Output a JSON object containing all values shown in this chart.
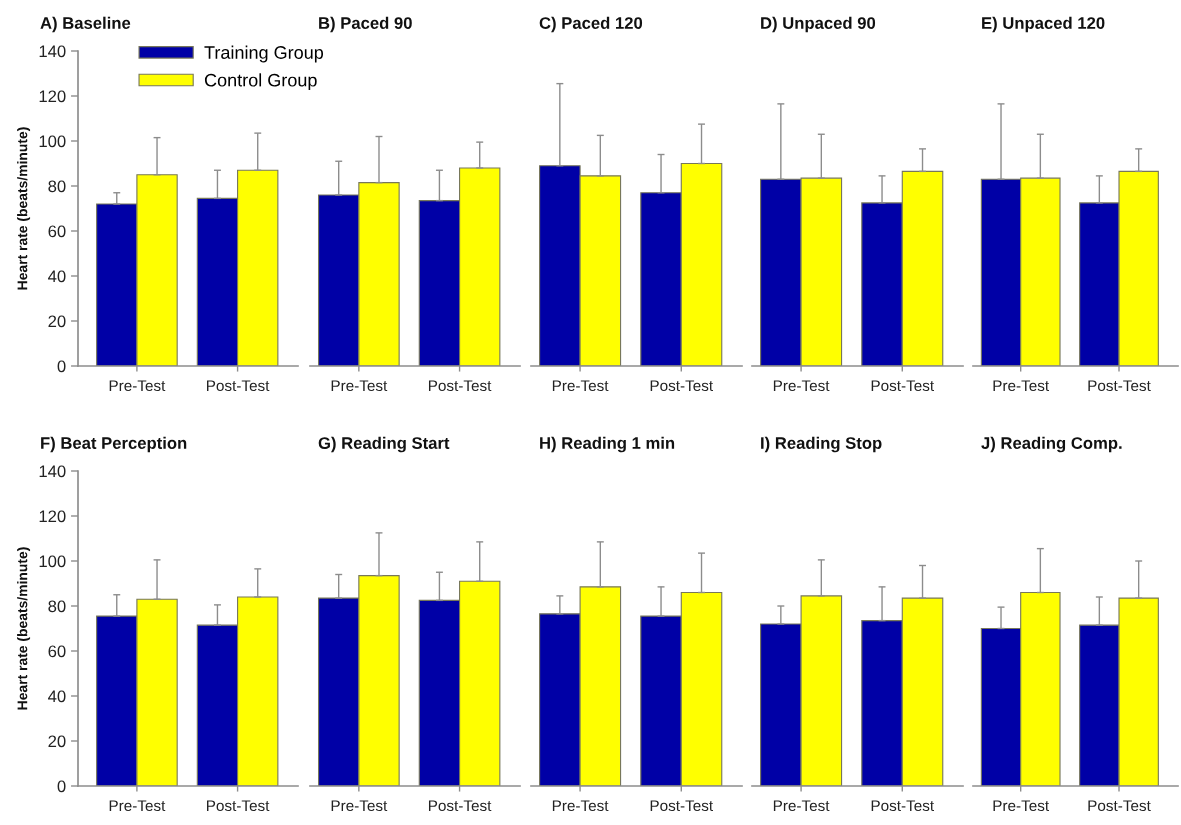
{
  "chart_data": [
    {
      "type": "bar",
      "title": "A) Baseline",
      "ylabel": "Heart rate (beats/minute)",
      "categories": [
        "Pre-Test",
        "Post-Test"
      ],
      "ylim": [
        0,
        140
      ],
      "yticks": [
        0,
        20,
        40,
        60,
        80,
        100,
        120,
        140
      ],
      "legend": "top right",
      "series": [
        {
          "name": "Training Group",
          "color": "#0000a6",
          "values": [
            72,
            74.5
          ],
          "errors": [
            [
              72,
              77
            ],
            [
              74.5,
              87
            ]
          ]
        },
        {
          "name": "Control Group",
          "color": "#ffff00",
          "values": [
            85,
            87
          ],
          "errors": [
            [
              85,
              101.5
            ],
            [
              87,
              103.5
            ]
          ]
        }
      ]
    },
    {
      "type": "bar",
      "title": "B) Paced 90",
      "categories": [
        "Pre-Test",
        "Post-Test"
      ],
      "ylim": [
        0,
        140
      ],
      "tick_labels": "x",
      "series": [
        {
          "color": "#0000a6",
          "values": [
            76,
            73.5
          ],
          "errors": [
            [
              76,
              91
            ],
            [
              73.5,
              87
            ]
          ]
        },
        {
          "color": "#ffff00",
          "values": [
            81.5,
            88
          ],
          "errors": [
            [
              81.5,
              102
            ],
            [
              88,
              99.5
            ]
          ]
        }
      ]
    },
    {
      "type": "bar",
      "title": "C) Paced 120",
      "categories": [
        "Pre-Test",
        "Post-Test"
      ],
      "ylim": [
        0,
        140
      ],
      "tick_labels": "x",
      "series": [
        {
          "color": "#0000a6",
          "values": [
            89,
            77
          ],
          "errors": [
            [
              89,
              125.5
            ],
            [
              77,
              94
            ]
          ]
        },
        {
          "color": "#ffff00",
          "values": [
            84.5,
            90
          ],
          "errors": [
            [
              84.5,
              102.5
            ],
            [
              90,
              107.5
            ]
          ]
        }
      ]
    },
    {
      "type": "bar",
      "title": "D) Unpaced 90",
      "categories": [
        "Pre-Test",
        "Post-Test"
      ],
      "ylim": [
        0,
        140
      ],
      "tick_labels": "x",
      "series": [
        {
          "color": "#0000a6",
          "values": [
            83,
            72.5
          ],
          "errors": [
            [
              83,
              116.5
            ],
            [
              72.5,
              84.5
            ]
          ]
        },
        {
          "color": "#ffff00",
          "values": [
            83.5,
            86.5
          ],
          "errors": [
            [
              83.5,
              103
            ],
            [
              86.5,
              96.5
            ]
          ]
        }
      ]
    },
    {
      "type": "bar",
      "title": "E) Unpaced 120",
      "categories": [
        "Pre-Test",
        "Post-Test"
      ],
      "ylim": [
        0,
        140
      ],
      "tick_labels": "x",
      "series": [
        {
          "color": "#0000a6",
          "values": [
            83,
            72.5
          ],
          "errors": [
            [
              83,
              116.5
            ],
            [
              72.5,
              84.5
            ]
          ]
        },
        {
          "color": "#ffff00",
          "values": [
            83.5,
            86.5
          ],
          "errors": [
            [
              83.5,
              103
            ],
            [
              86.5,
              96.5
            ]
          ]
        }
      ]
    },
    {
      "type": "bar",
      "title": "F) Beat Perception",
      "ylabel": "Heart rate (beats/minute)",
      "categories": [
        "Pre-Test",
        "Post-Test"
      ],
      "ylim": [
        0,
        140
      ],
      "yticks": [
        0,
        20,
        40,
        60,
        80,
        100,
        120,
        140
      ],
      "series": [
        {
          "color": "#0000a6",
          "values": [
            75.5,
            71.5
          ],
          "errors": [
            [
              75.5,
              85
            ],
            [
              71.5,
              80.5
            ]
          ]
        },
        {
          "color": "#ffff00",
          "values": [
            83,
            84
          ],
          "errors": [
            [
              83,
              100.5
            ],
            [
              84,
              96.5
            ]
          ]
        }
      ]
    },
    {
      "type": "bar",
      "title": "G) Reading Start",
      "categories": [
        "Pre-Test",
        "Post-Test"
      ],
      "ylim": [
        0,
        140
      ],
      "tick_labels": "x",
      "series": [
        {
          "color": "#0000a6",
          "values": [
            83.5,
            82.5
          ],
          "errors": [
            [
              83.5,
              94
            ],
            [
              82.5,
              95
            ]
          ]
        },
        {
          "color": "#ffff00",
          "values": [
            93.5,
            91
          ],
          "errors": [
            [
              93.5,
              112.5
            ],
            [
              91,
              108.5
            ]
          ]
        }
      ]
    },
    {
      "type": "bar",
      "title": "H) Reading 1 min",
      "categories": [
        "Pre-Test",
        "Post-Test"
      ],
      "ylim": [
        0,
        140
      ],
      "tick_labels": "x",
      "series": [
        {
          "color": "#0000a6",
          "values": [
            76.5,
            75.5
          ],
          "errors": [
            [
              76.5,
              84.5
            ],
            [
              75.5,
              88.5
            ]
          ]
        },
        {
          "color": "#ffff00",
          "values": [
            88.5,
            86
          ],
          "errors": [
            [
              88.5,
              108.5
            ],
            [
              86,
              103.5
            ]
          ]
        }
      ]
    },
    {
      "type": "bar",
      "title": "I) Reading Stop",
      "categories": [
        "Pre-Test",
        "Post-Test"
      ],
      "ylim": [
        0,
        140
      ],
      "tick_labels": "x",
      "series": [
        {
          "color": "#0000a6",
          "values": [
            72,
            73.5
          ],
          "errors": [
            [
              72,
              80
            ],
            [
              73.5,
              88.5
            ]
          ]
        },
        {
          "color": "#ffff00",
          "values": [
            84.5,
            83.5
          ],
          "errors": [
            [
              84.5,
              100.5
            ],
            [
              83.5,
              98
            ]
          ]
        }
      ]
    },
    {
      "type": "bar",
      "title": "J) Reading Comp.",
      "categories": [
        "Pre-Test",
        "Post-Test"
      ],
      "ylim": [
        0,
        140
      ],
      "tick_labels": "x",
      "series": [
        {
          "color": "#0000a6",
          "values": [
            70,
            71.5
          ],
          "errors": [
            [
              70,
              79.5
            ],
            [
              71.5,
              84
            ]
          ]
        },
        {
          "color": "#ffff00",
          "values": [
            86,
            83.5
          ],
          "errors": [
            [
              86,
              105.5
            ],
            [
              83.5,
              100
            ]
          ]
        }
      ]
    }
  ]
}
